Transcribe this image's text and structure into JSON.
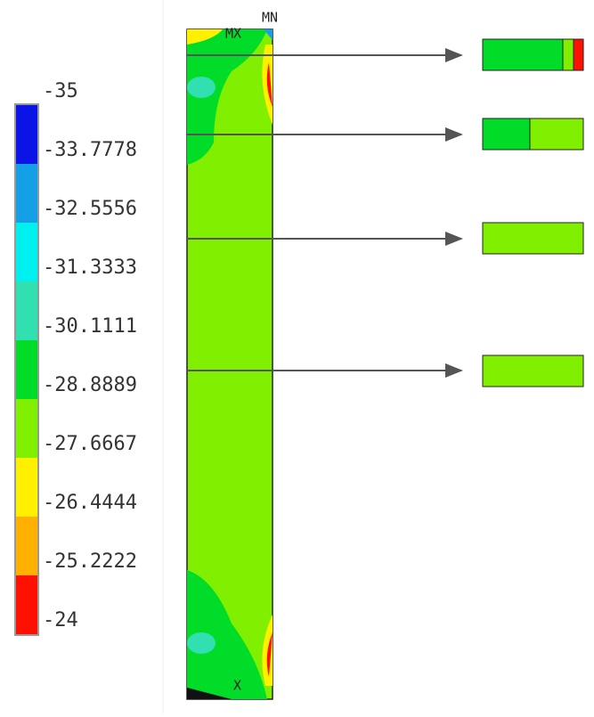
{
  "legend": {
    "labels": [
      -35,
      -33.7778,
      -32.5556,
      -31.3333,
      -30.1111,
      -28.8889,
      -27.6667,
      -26.4444,
      -25.2222,
      -24
    ],
    "colors": [
      "#0a14e6",
      "#14a0e6",
      "#00f0f0",
      "#30e0b0",
      "#00dc28",
      "#80f000",
      "#fff000",
      "#ffb000",
      "#ff1000"
    ]
  },
  "markers": {
    "mx": "MX",
    "mn": "MN",
    "x": "X"
  }
}
